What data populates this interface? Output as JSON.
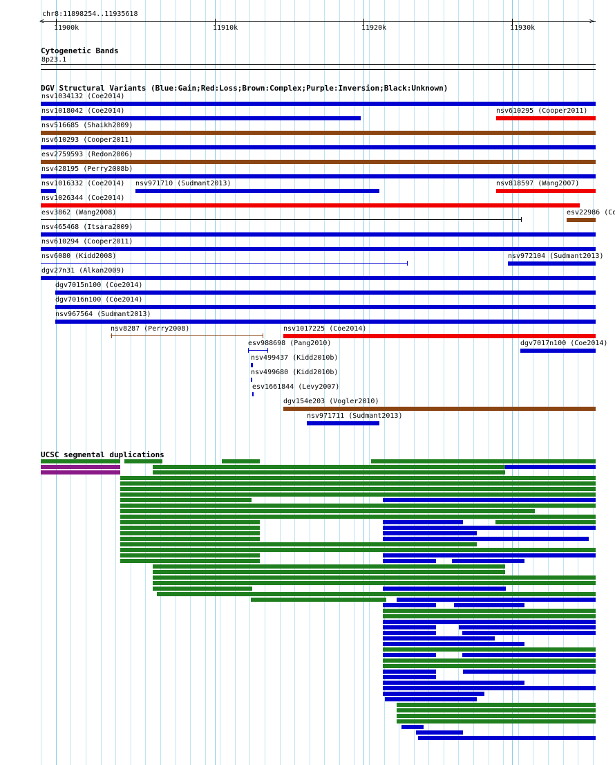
{
  "header": {
    "coord_label": "chr8:11898254..11935618",
    "ticks": [
      "11900k",
      "11910k",
      "11920k",
      "11930k"
    ]
  },
  "cytoband": {
    "title": "Cytogenetic Bands",
    "band": "8p23.1"
  },
  "dgv": {
    "title": "DGV Structural Variants (Blue:Gain;Red:Loss;Brown:Complex;Purple:Inversion;Black:Unknown)",
    "colors": {
      "blue": "#0000d0",
      "red": "#f00000",
      "brown": "#8b4513",
      "black": "#000000"
    },
    "features": [
      {
        "label": "nsv1034132 (Coe2014)",
        "type": "gain"
      },
      {
        "label": "nsv1018042 (Coe2014)",
        "type": "gain"
      },
      {
        "label": "nsv610295 (Cooper2011)",
        "type": "loss"
      },
      {
        "label": "nsv516685 (Shaikh2009)",
        "type": "complex"
      },
      {
        "label": "nsv610293 (Cooper2011)",
        "type": "gain"
      },
      {
        "label": "esv2759593 (Redon2006)",
        "type": "complex"
      },
      {
        "label": "nsv428195 (Perry2008b)",
        "type": "gain"
      },
      {
        "label": "nsv1016332 (Coe2014)",
        "type": "gain"
      },
      {
        "label": "nsv971710 (Sudmant2013)",
        "type": "gain"
      },
      {
        "label": "nsv818597 (Wang2007)",
        "type": "loss"
      },
      {
        "label": "nsv1026344 (Coe2014)",
        "type": "loss"
      },
      {
        "label": "esv3862 (Wang2008)",
        "type": "unknown"
      },
      {
        "label": "esv22986 (Co",
        "type": "complex"
      },
      {
        "label": "nsv465468 (Itsara2009)",
        "type": "gain"
      },
      {
        "label": "nsv610294 (Cooper2011)",
        "type": "gain"
      },
      {
        "label": "nsv6080 (Kidd2008)",
        "type": "gain"
      },
      {
        "label": "nsv972104 (Sudmant2013)",
        "type": "gain"
      },
      {
        "label": "dgv27n31 (Alkan2009)",
        "type": "gain"
      },
      {
        "label": "dgv7015n100 (Coe2014)",
        "type": "gain"
      },
      {
        "label": "dgv7016n100 (Coe2014)",
        "type": "gain"
      },
      {
        "label": "nsv967564 (Sudmant2013)",
        "type": "gain"
      },
      {
        "label": "nsv8287 (Perry2008)",
        "type": "complex"
      },
      {
        "label": "nsv1017225 (Coe2014)",
        "type": "loss"
      },
      {
        "label": "esv988698 (Pang2010)",
        "type": "gain"
      },
      {
        "label": "dgv7017n100 (Coe2014)",
        "type": "gain"
      },
      {
        "label": "nsv499437 (Kidd2010b)",
        "type": "gain"
      },
      {
        "label": "nsv499680 (Kidd2010b)",
        "type": "gain"
      },
      {
        "label": "esv1661844 (Levy2007)",
        "type": "gain"
      },
      {
        "label": "dgv154e203 (Vogler2010)",
        "type": "complex"
      },
      {
        "label": "nsv971711 (Sudmant2013)",
        "type": "gain"
      }
    ]
  },
  "segdups": {
    "title": "UCSC segmental duplications",
    "colors": {
      "green": "#1f7f1f",
      "blue": "#0000d0",
      "purple": "#8b1a89"
    }
  }
}
